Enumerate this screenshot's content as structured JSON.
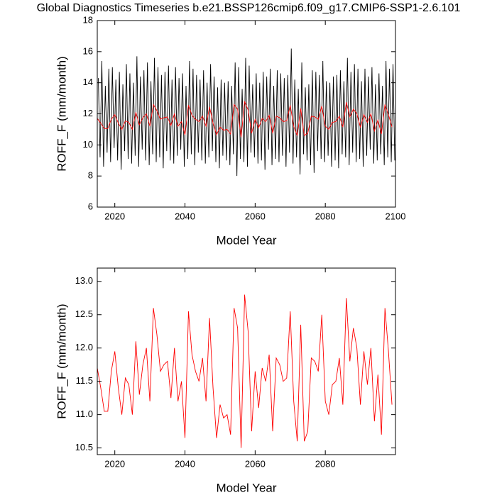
{
  "chart_data": [
    {
      "type": "line",
      "title": "Global Diagnostics Timeseries b.e21.BSSP126cmip6.f09_g17.CMIP6-SSP1-2.6.101",
      "xlabel": "Model Year",
      "ylabel": "ROFF_F (mm/month)",
      "xlim": [
        2015,
        2100
      ],
      "xticks": [
        2020,
        2040,
        2060,
        2080,
        2100
      ],
      "ylim": [
        6,
        18
      ],
      "yticks": [
        6,
        8,
        10,
        12,
        14,
        16,
        18
      ],
      "series": [
        {
          "color": "#000000",
          "x": [
            2015.3,
            2015.8,
            2016.3,
            2016.8,
            2017.3,
            2017.8,
            2018.3,
            2018.8,
            2019.3,
            2019.8,
            2020.3,
            2020.8,
            2021.3,
            2021.8,
            2022.3,
            2022.8,
            2023.3,
            2023.8,
            2024.3,
            2024.8,
            2025.3,
            2025.8,
            2026.3,
            2026.8,
            2027.3,
            2027.8,
            2028.3,
            2028.8,
            2029.3,
            2029.8,
            2030.3,
            2030.8,
            2031.3,
            2031.8,
            2032.3,
            2032.8,
            2033.3,
            2033.8,
            2034.3,
            2034.8,
            2035.3,
            2035.8,
            2036.3,
            2036.8,
            2037.3,
            2037.8,
            2038.3,
            2038.8,
            2039.3,
            2039.8,
            2040.3,
            2040.8,
            2041.3,
            2041.8,
            2042.3,
            2042.8,
            2043.3,
            2043.8,
            2044.3,
            2044.8,
            2045.3,
            2045.8,
            2046.3,
            2046.8,
            2047.3,
            2047.8,
            2048.3,
            2048.8,
            2049.3,
            2049.8,
            2050.3,
            2050.8,
            2051.3,
            2051.8,
            2052.3,
            2052.8,
            2053.3,
            2053.8,
            2054.3,
            2054.8,
            2055.3,
            2055.8,
            2056.3,
            2056.8,
            2057.3,
            2057.8,
            2058.3,
            2058.8,
            2059.3,
            2059.8,
            2060.3,
            2060.8,
            2061.3,
            2061.8,
            2062.3,
            2062.8,
            2063.3,
            2063.8,
            2064.3,
            2064.8,
            2065.3,
            2065.8,
            2066.3,
            2066.8,
            2067.3,
            2067.8,
            2068.3,
            2068.8,
            2069.3,
            2069.8,
            2070.3,
            2070.8,
            2071.3,
            2071.8,
            2072.3,
            2072.8,
            2073.3,
            2073.8,
            2074.3,
            2074.8,
            2075.3,
            2075.8,
            2076.3,
            2076.8,
            2077.3,
            2077.8,
            2078.3,
            2078.8,
            2079.3,
            2079.8,
            2080.3,
            2080.8,
            2081.3,
            2081.8,
            2082.3,
            2082.8,
            2083.3,
            2083.8,
            2084.3,
            2084.8,
            2085.3,
            2085.8,
            2086.3,
            2086.8,
            2087.3,
            2087.8,
            2088.3,
            2088.8,
            2089.3,
            2089.8,
            2090.3,
            2090.8,
            2091.3,
            2091.8,
            2092.3,
            2092.8,
            2093.3,
            2093.8,
            2094.3,
            2094.8,
            2095.3,
            2095.8,
            2096.3,
            2096.8,
            2097.3,
            2097.8,
            2098.3,
            2098.8,
            2099.3,
            2099.8
          ],
          "values": [
            14.3,
            9.2,
            15.4,
            8.6,
            13.8,
            9.5,
            14.9,
            8.9,
            15.0,
            9.8,
            14.2,
            9.0,
            14.7,
            8.4,
            13.9,
            9.6,
            15.2,
            9.1,
            14.6,
            8.8,
            14.0,
            9.3,
            15.7,
            8.6,
            14.4,
            9.7,
            14.8,
            9.0,
            15.3,
            8.7,
            14.1,
            9.4,
            15.6,
            8.9,
            15.0,
            9.2,
            14.5,
            8.5,
            14.7,
            9.6,
            15.1,
            9.0,
            14.2,
            8.8,
            15.0,
            9.3,
            14.3,
            9.7,
            14.6,
            8.6,
            13.8,
            9.1,
            15.4,
            9.4,
            14.9,
            8.7,
            14.5,
            9.5,
            14.2,
            9.0,
            14.8,
            8.8,
            14.0,
            9.2,
            15.2,
            9.6,
            14.4,
            8.9,
            13.7,
            8.5,
            14.2,
            9.3,
            14.0,
            9.0,
            14.1,
            8.7,
            13.8,
            9.4,
            15.3,
            8.0,
            15.0,
            9.1,
            13.6,
            8.9,
            15.6,
            8.6,
            15.1,
            9.5,
            13.9,
            9.2,
            14.6,
            8.8,
            14.0,
            9.0,
            14.7,
            8.4,
            14.4,
            9.7,
            14.9,
            8.7,
            13.8,
            9.1,
            14.8,
            8.9,
            14.6,
            9.3,
            14.3,
            8.6,
            14.5,
            9.5,
            16.2,
            8.8,
            14.2,
            9.2,
            13.6,
            8.1,
            15.3,
            9.4,
            13.7,
            9.0,
            13.9,
            8.7,
            14.8,
            8.2,
            14.7,
            9.6,
            14.5,
            9.1,
            15.4,
            8.9,
            14.1,
            9.3,
            14.0,
            8.6,
            14.4,
            9.0,
            14.5,
            8.5,
            14.8,
            9.4,
            14.1,
            9.2,
            15.6,
            8.7,
            14.7,
            9.5,
            15.2,
            8.9,
            14.9,
            9.1,
            14.1,
            8.6,
            14.9,
            9.3,
            14.4,
            9.7,
            15.0,
            8.8,
            13.9,
            9.0,
            14.6,
            9.4,
            13.8,
            8.7,
            15.4,
            9.2,
            14.9,
            8.9,
            15.2,
            9.0
          ]
        },
        {
          "color": "#ff0000",
          "x": [
            2015,
            2016,
            2017,
            2018,
            2019,
            2020,
            2021,
            2022,
            2023,
            2024,
            2025,
            2026,
            2027,
            2028,
            2029,
            2030,
            2031,
            2032,
            2033,
            2034,
            2035,
            2036,
            2037,
            2038,
            2039,
            2040,
            2041,
            2042,
            2043,
            2044,
            2045,
            2046,
            2047,
            2048,
            2049,
            2050,
            2051,
            2052,
            2053,
            2054,
            2055,
            2056,
            2057,
            2058,
            2059,
            2060,
            2061,
            2062,
            2063,
            2064,
            2065,
            2066,
            2067,
            2068,
            2069,
            2070,
            2071,
            2072,
            2073,
            2074,
            2075,
            2076,
            2077,
            2078,
            2079,
            2080,
            2081,
            2082,
            2083,
            2084,
            2085,
            2086,
            2087,
            2088,
            2089,
            2090,
            2091,
            2092,
            2093,
            2094,
            2095,
            2096,
            2097,
            2098,
            2099
          ],
          "values": [
            11.7,
            11.4,
            11.05,
            11.05,
            11.65,
            11.95,
            11.4,
            11.0,
            11.55,
            11.45,
            11.0,
            12.1,
            11.3,
            11.75,
            12.0,
            11.2,
            12.6,
            12.2,
            11.65,
            11.75,
            11.8,
            11.25,
            12.0,
            11.2,
            11.5,
            10.65,
            12.55,
            11.9,
            11.65,
            11.5,
            11.85,
            11.2,
            12.45,
            11.4,
            10.65,
            11.15,
            10.95,
            11.0,
            10.7,
            12.6,
            12.3,
            10.5,
            12.8,
            12.25,
            10.75,
            11.65,
            11.1,
            11.7,
            11.5,
            11.9,
            10.75,
            11.85,
            11.75,
            11.5,
            11.55,
            12.55,
            11.2,
            10.6,
            12.35,
            10.6,
            10.75,
            11.85,
            11.8,
            11.65,
            12.5,
            11.2,
            11.0,
            11.45,
            11.5,
            11.85,
            11.15,
            12.75,
            11.8,
            12.3,
            12.0,
            11.15,
            11.95,
            11.45,
            12.0,
            10.9,
            11.6,
            10.7,
            12.6,
            11.95,
            11.15
          ]
        }
      ]
    },
    {
      "type": "line",
      "xlabel": "Model Year",
      "ylabel": "ROFF_F (mm/month)",
      "xlim": [
        2015,
        2100
      ],
      "xticks": [
        2020,
        2040,
        2060,
        2080
      ],
      "ylim": [
        10.4,
        13.2
      ],
      "yticks": [
        10.5,
        {
          "value": 11,
          "label": "11.0"
        },
        11.5,
        {
          "value": 12,
          "label": "12.0"
        },
        12.5,
        {
          "value": 13,
          "label": "13.0"
        }
      ],
      "series": [
        {
          "color": "#ff0000",
          "x": [
            2015,
            2016,
            2017,
            2018,
            2019,
            2020,
            2021,
            2022,
            2023,
            2024,
            2025,
            2026,
            2027,
            2028,
            2029,
            2030,
            2031,
            2032,
            2033,
            2034,
            2035,
            2036,
            2037,
            2038,
            2039,
            2040,
            2041,
            2042,
            2043,
            2044,
            2045,
            2046,
            2047,
            2048,
            2049,
            2050,
            2051,
            2052,
            2053,
            2054,
            2055,
            2056,
            2057,
            2058,
            2059,
            2060,
            2061,
            2062,
            2063,
            2064,
            2065,
            2066,
            2067,
            2068,
            2069,
            2070,
            2071,
            2072,
            2073,
            2074,
            2075,
            2076,
            2077,
            2078,
            2079,
            2080,
            2081,
            2082,
            2083,
            2084,
            2085,
            2086,
            2087,
            2088,
            2089,
            2090,
            2091,
            2092,
            2093,
            2094,
            2095,
            2096,
            2097,
            2098,
            2099
          ],
          "values": [
            11.7,
            11.4,
            11.05,
            11.05,
            11.65,
            11.95,
            11.4,
            11.0,
            11.55,
            11.45,
            11.0,
            12.1,
            11.3,
            11.75,
            12.0,
            11.2,
            12.6,
            12.2,
            11.65,
            11.75,
            11.8,
            11.25,
            12.0,
            11.2,
            11.5,
            10.65,
            12.55,
            11.9,
            11.65,
            11.5,
            11.85,
            11.2,
            12.45,
            11.4,
            10.65,
            11.15,
            10.95,
            11.0,
            10.7,
            12.6,
            12.3,
            10.5,
            12.8,
            12.25,
            10.75,
            11.65,
            11.1,
            11.7,
            11.5,
            11.9,
            10.75,
            11.85,
            11.75,
            11.5,
            11.55,
            12.55,
            11.2,
            10.6,
            12.35,
            10.6,
            10.75,
            11.85,
            11.8,
            11.65,
            12.5,
            11.2,
            11.0,
            11.45,
            11.5,
            11.85,
            11.15,
            12.75,
            11.8,
            12.3,
            12.0,
            11.15,
            11.95,
            11.45,
            12.0,
            10.9,
            11.6,
            10.7,
            12.6,
            11.95,
            11.15
          ]
        }
      ]
    }
  ]
}
